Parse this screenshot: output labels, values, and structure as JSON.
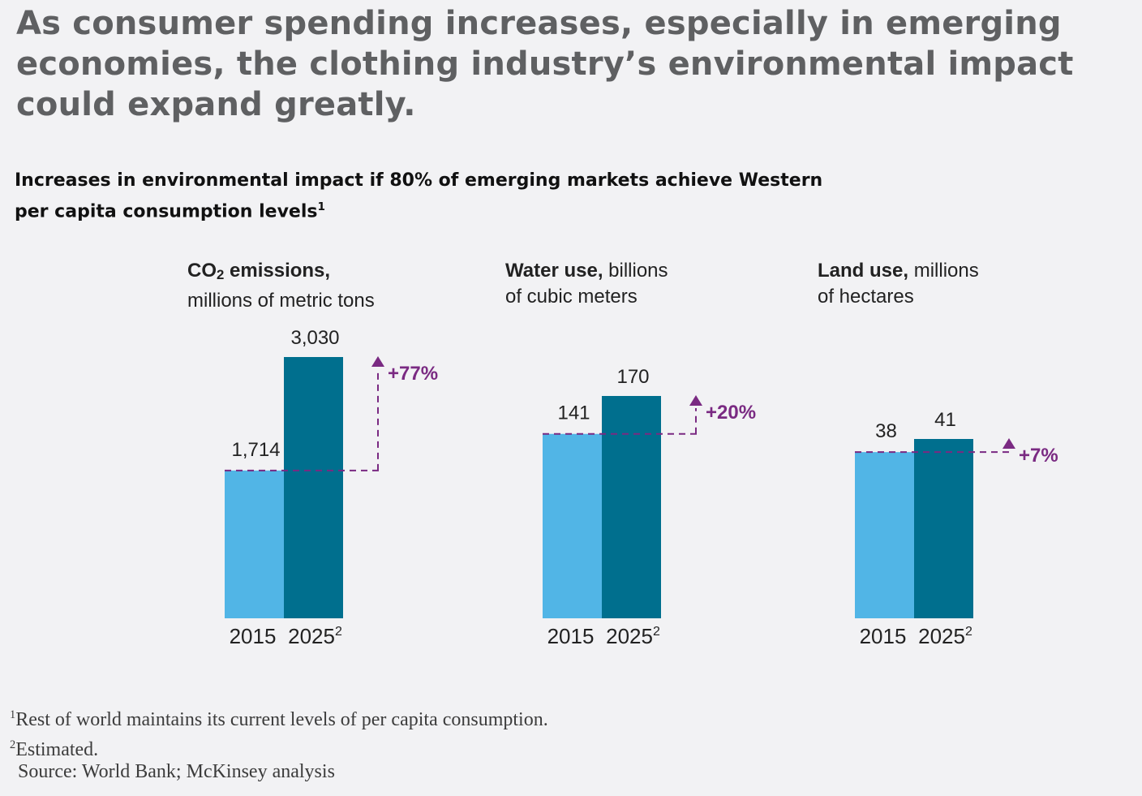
{
  "headline": "As consumer spending increases, especially in emerging economies, the clothing industry’s environmental impact could expand greatly.",
  "subtitle": "Increases in environmental impact if 80% of emerging markets achieve Western per capita consumption levels",
  "subtitle_note": "1",
  "panels": [
    {
      "title_bold": "CO",
      "title_sub": "2",
      "title_bold_rest": " emissions,",
      "title_rest": "",
      "title_line2": "millions of metric tons"
    },
    {
      "title_bold": "Water use,",
      "title_sub": "",
      "title_bold_rest": "",
      "title_rest": " billions",
      "title_line2": "of cubic meters"
    },
    {
      "title_bold": "Land use,",
      "title_sub": "",
      "title_bold_rest": "",
      "title_rest": " millions",
      "title_line2": "of hectares"
    }
  ],
  "chart_data": [
    {
      "type": "bar",
      "categories": [
        "2015",
        "2025"
      ],
      "category_notes": [
        "",
        "2"
      ],
      "values": [
        1714,
        3030
      ],
      "value_labels": [
        "1,714",
        "3,030"
      ],
      "change_label": "+77%"
    },
    {
      "type": "bar",
      "categories": [
        "2015",
        "2025"
      ],
      "category_notes": [
        "",
        "2"
      ],
      "values": [
        141,
        170
      ],
      "value_labels": [
        "141",
        "170"
      ],
      "change_label": "+20%"
    },
    {
      "type": "bar",
      "categories": [
        "2015",
        "2025"
      ],
      "category_notes": [
        "",
        "2"
      ],
      "values": [
        38,
        41
      ],
      "value_labels": [
        "38",
        "41"
      ],
      "change_label": "+7%"
    }
  ],
  "colors": {
    "bar_2015": "#51b5e6",
    "bar_2025": "#006f8e",
    "accent": "#7a2a82",
    "headline": "#5f6062"
  },
  "footnotes": [
    {
      "mark": "1",
      "text": "Rest of world maintains its current levels of per capita consumption."
    },
    {
      "mark": "2",
      "text": "Estimated."
    }
  ],
  "source": "Source: World Bank; McKinsey analysis"
}
